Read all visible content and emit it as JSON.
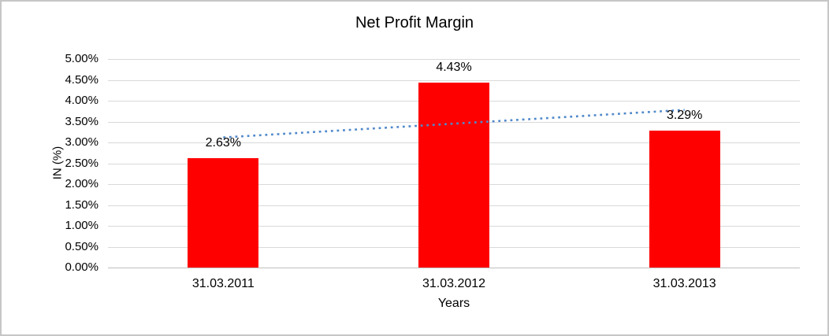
{
  "chart_data": {
    "type": "bar",
    "title": "Net Profit Margin",
    "xlabel": "Years",
    "ylabel": "IN (%)",
    "categories": [
      "31.03.2011",
      "31.03.2012",
      "31.03.2013"
    ],
    "values": [
      2.63,
      4.43,
      3.29
    ],
    "data_labels": [
      "2.63%",
      "4.43%",
      "3.29%"
    ],
    "y_ticks": [
      "0.00%",
      "0.50%",
      "1.00%",
      "1.50%",
      "2.00%",
      "2.50%",
      "3.00%",
      "3.50%",
      "4.00%",
      "4.50%",
      "5.00%"
    ],
    "ylim": [
      0,
      5
    ],
    "grid": true,
    "legend": "none",
    "bar_color": "#ff0000",
    "gridline_color": "#d9d9d9",
    "axis_line_color": "#bfbfbf",
    "text_color": "#000000",
    "trendline": {
      "style": "dotted",
      "color": "#5089ca",
      "start_value": 3.12,
      "end_value": 3.78
    }
  }
}
